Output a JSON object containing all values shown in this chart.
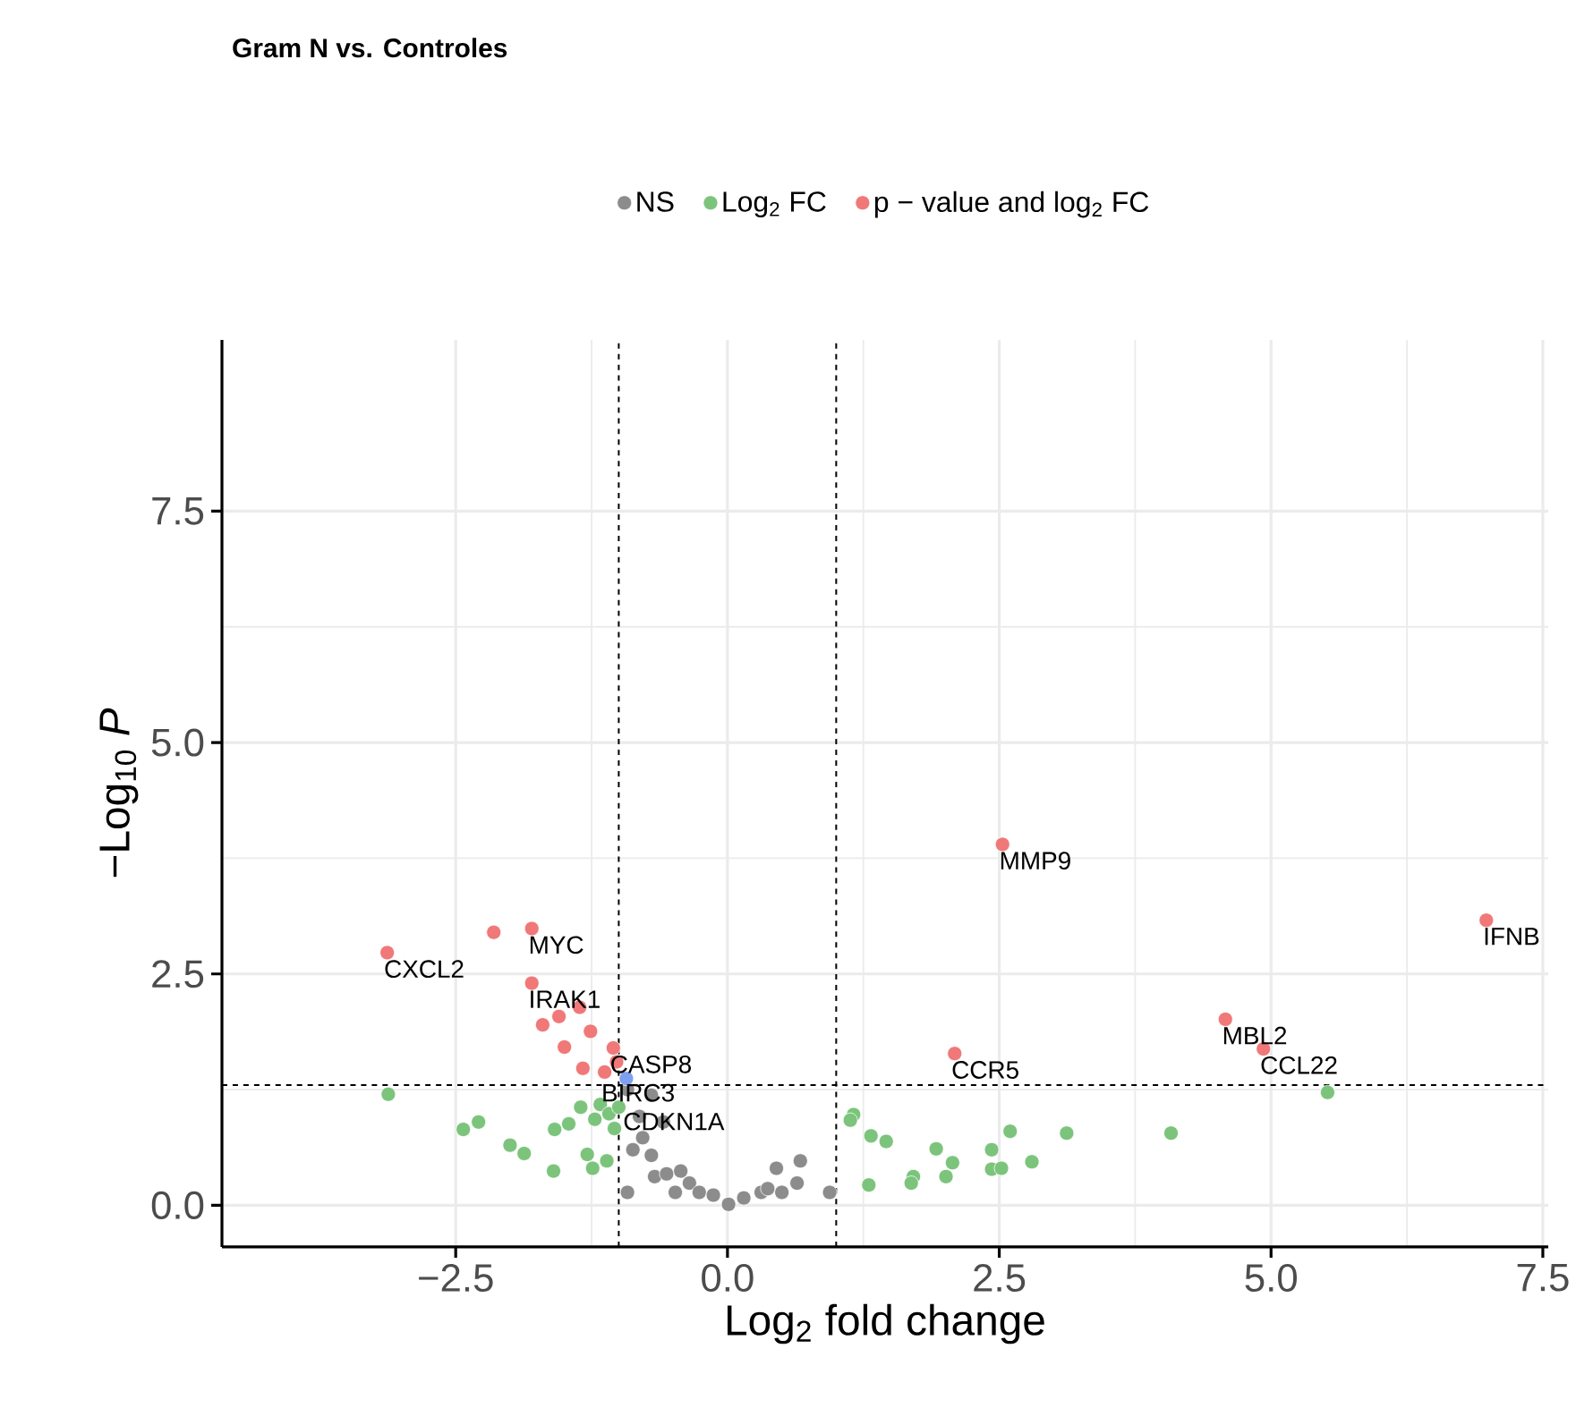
{
  "chart_data": {
    "type": "scatter",
    "title": "Gram N vs. Controles",
    "xlabel": "Log$_{2}$ fold change",
    "ylabel": "−Log$_{10}$ *P*",
    "xlim": [
      -4.65,
      7.55
    ],
    "ylim": [
      -0.45,
      9.35
    ],
    "xticks": [
      {
        "value": -2.5,
        "label": "−2.5"
      },
      {
        "value": 0,
        "label": "0.0"
      },
      {
        "value": 2.5,
        "label": "2.5"
      },
      {
        "value": 5,
        "label": "5.0"
      },
      {
        "value": 7.5,
        "label": "7.5"
      }
    ],
    "yticks": [
      {
        "value": 0,
        "label": "0.0"
      },
      {
        "value": 2.5,
        "label": "2.5"
      },
      {
        "value": 5,
        "label": "5.0"
      },
      {
        "value": 7.5,
        "label": "7.5"
      }
    ],
    "grid": true,
    "legend": "top",
    "marker": "circle",
    "series": [
      {
        "name": "NS",
        "color": "#8c8c8c",
        "x": [
          -0.92,
          -0.7,
          -0.81,
          -0.78,
          -0.87,
          -0.7,
          -0.59,
          -0.92,
          -0.67,
          -0.56,
          -0.43,
          -0.48,
          -0.35,
          -0.26,
          -0.13,
          0.01,
          0.15,
          0.31,
          0.45,
          0.67,
          0.64,
          0.5,
          0.94,
          0.37
        ],
        "values": [
          1.25,
          1.19,
          0.96,
          0.73,
          0.6,
          0.54,
          0.9,
          0.14,
          0.31,
          0.34,
          0.37,
          0.14,
          0.24,
          0.14,
          0.11,
          0.01,
          0.08,
          0.14,
          0.4,
          0.48,
          0.24,
          0.14,
          0.14,
          0.18
        ]
      },
      {
        "name": "Log$_{2}$ FC",
        "color": "#7cc47c",
        "x": [
          5.52,
          1.16,
          1.13,
          1.32,
          1.46,
          1.92,
          2.07,
          2.01,
          1.71,
          1.69,
          1.3,
          2.43,
          2.6,
          2.43,
          2.52,
          2.8,
          3.12,
          4.08,
          -3.12,
          -2.43,
          -2.29,
          -2.0,
          -1.87,
          -1.6,
          -1.59,
          -1.46,
          -1.35,
          -1.22,
          -1.29,
          -1.24,
          -1.11,
          -1.17,
          -1.04,
          -1.09,
          -1.0
        ],
        "values": [
          1.22,
          0.98,
          0.92,
          0.75,
          0.69,
          0.61,
          0.46,
          0.31,
          0.31,
          0.24,
          0.22,
          0.6,
          0.8,
          0.39,
          0.4,
          0.47,
          0.78,
          0.78,
          1.2,
          0.82,
          0.9,
          0.65,
          0.56,
          0.37,
          0.82,
          0.88,
          1.06,
          0.93,
          0.55,
          0.4,
          0.48,
          1.09,
          0.83,
          0.99,
          1.06
        ]
      },
      {
        "color": "#7f9fef",
        "x": [
          -0.93
        ],
        "values": [
          1.37
        ]
      },
      {
        "name": "p − value and log$_{2}$ FC",
        "color": "#f07878",
        "x": [
          -3.13,
          -2.15,
          -1.8,
          -1.8,
          -1.55,
          -1.36,
          -1.7,
          -1.26,
          -1.5,
          -1.33,
          -1.13,
          -1.05,
          -1.02,
          2.53,
          6.98,
          4.58,
          4.93,
          2.09
        ],
        "values": [
          2.73,
          2.95,
          2.99,
          2.4,
          2.04,
          2.14,
          1.95,
          1.88,
          1.71,
          1.48,
          1.44,
          1.7,
          1.55,
          3.9,
          3.08,
          2.01,
          1.69,
          1.64
        ]
      }
    ],
    "ref_lines": [
      {
        "axis": "x",
        "value": -1,
        "line_style": "dashed",
        "color": "#000000"
      },
      {
        "axis": "x",
        "value": 1,
        "line_style": "dashed",
        "color": "#000000"
      },
      {
        "axis": "y",
        "value": 1.3,
        "line_style": "dashed",
        "color": "#000000"
      }
    ],
    "annotations": [
      {
        "text": "CXCL2",
        "x": -3.13,
        "y": 2.73
      },
      {
        "text": "MYC",
        "x": -1.8,
        "y": 2.99
      },
      {
        "text": "IRAK1",
        "x": -1.8,
        "y": 2.4
      },
      {
        "text": "CASP8",
        "x": -1.05,
        "y": 1.7
      },
      {
        "text": "BIRC3",
        "x": -1.13,
        "y": 1.44
      },
      {
        "text": "CDKN1A",
        "x": -0.93,
        "y": 1.37
      },
      {
        "text": "MMP9",
        "x": 2.53,
        "y": 3.9
      },
      {
        "text": "IFNB",
        "x": 6.98,
        "y": 3.08
      },
      {
        "text": "MBL2",
        "x": 4.58,
        "y": 2.01
      },
      {
        "text": "CCL22",
        "x": 4.93,
        "y": 1.69
      },
      {
        "text": "CCR5",
        "x": 2.09,
        "y": 1.64
      }
    ]
  }
}
